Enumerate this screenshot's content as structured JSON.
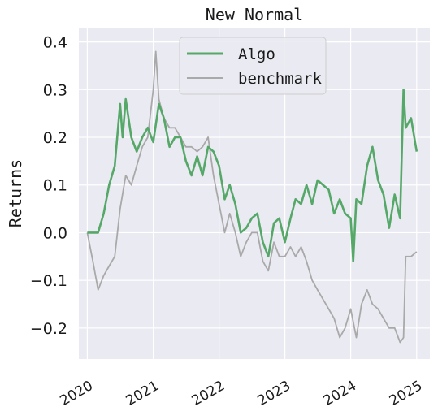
{
  "chart_data": {
    "type": "line",
    "title": "New Normal",
    "xlabel": "",
    "ylabel": "Returns",
    "x_ticks": [
      "2020",
      "2021",
      "2022",
      "2023",
      "2024",
      "2025"
    ],
    "y_ticks": [
      "0.4",
      "0.3",
      "0.2",
      "0.1",
      "0.0",
      "−0.1",
      "−0.2"
    ],
    "y_tick_values": [
      0.4,
      0.3,
      0.2,
      0.1,
      0.0,
      -0.1,
      -0.2
    ],
    "ylim": [
      -0.265,
      0.43
    ],
    "xlim": [
      "2019-11-15",
      "2025-03-15"
    ],
    "grid": true,
    "legend": {
      "placement": "top-center",
      "entries": [
        "Algo",
        "benchmark"
      ]
    },
    "colors": {
      "algo": "#55a868",
      "benchmark": "#a9a9a9",
      "background": "#eaeaf2",
      "grid": "#ffffff"
    },
    "series": [
      {
        "name": "Algo",
        "x": [
          "2020-01-01",
          "2020-02-15",
          "2020-03-01",
          "2020-04-01",
          "2020-05-01",
          "2020-06-01",
          "2020-07-01",
          "2020-07-15",
          "2020-08-01",
          "2020-09-01",
          "2020-10-01",
          "2020-11-01",
          "2020-12-01",
          "2021-01-01",
          "2021-02-01",
          "2021-03-01",
          "2021-04-01",
          "2021-05-01",
          "2021-06-01",
          "2021-07-01",
          "2021-08-01",
          "2021-09-01",
          "2021-10-01",
          "2021-11-01",
          "2021-12-01",
          "2022-01-01",
          "2022-02-01",
          "2022-03-01",
          "2022-04-01",
          "2022-05-01",
          "2022-06-01",
          "2022-07-01",
          "2022-08-01",
          "2022-09-01",
          "2022-10-01",
          "2022-11-01",
          "2022-12-01",
          "2023-01-01",
          "2023-02-01",
          "2023-03-01",
          "2023-04-01",
          "2023-05-01",
          "2023-06-01",
          "2023-07-01",
          "2023-08-01",
          "2023-09-01",
          "2023-10-01",
          "2023-11-01",
          "2023-12-01",
          "2024-01-01",
          "2024-01-15",
          "2024-02-01",
          "2024-03-01",
          "2024-04-01",
          "2024-05-01",
          "2024-06-01",
          "2024-07-01",
          "2024-08-01",
          "2024-09-01",
          "2024-10-01",
          "2024-10-20",
          "2024-11-01",
          "2024-12-01",
          "2025-01-01"
        ],
        "values": [
          0.0,
          0.0,
          0.0,
          0.04,
          0.1,
          0.14,
          0.27,
          0.2,
          0.28,
          0.2,
          0.17,
          0.2,
          0.22,
          0.19,
          0.27,
          0.24,
          0.18,
          0.2,
          0.2,
          0.15,
          0.12,
          0.16,
          0.12,
          0.18,
          0.17,
          0.14,
          0.07,
          0.1,
          0.06,
          0.0,
          0.01,
          0.03,
          0.04,
          -0.02,
          -0.05,
          0.02,
          0.03,
          -0.02,
          0.03,
          0.07,
          0.06,
          0.1,
          0.06,
          0.11,
          0.1,
          0.09,
          0.04,
          0.07,
          0.04,
          0.03,
          -0.06,
          0.07,
          0.06,
          0.14,
          0.18,
          0.11,
          0.08,
          0.01,
          0.08,
          0.03,
          0.3,
          0.22,
          0.24,
          0.17
        ]
      },
      {
        "name": "benchmark",
        "x": [
          "2020-01-01",
          "2020-02-01",
          "2020-03-01",
          "2020-04-01",
          "2020-05-01",
          "2020-06-01",
          "2020-07-01",
          "2020-08-01",
          "2020-09-01",
          "2020-10-01",
          "2020-11-01",
          "2020-12-01",
          "2021-01-01",
          "2021-01-15",
          "2021-02-01",
          "2021-03-01",
          "2021-04-01",
          "2021-05-01",
          "2021-06-01",
          "2021-07-01",
          "2021-08-01",
          "2021-09-01",
          "2021-10-01",
          "2021-11-01",
          "2021-12-01",
          "2022-01-01",
          "2022-02-01",
          "2022-03-01",
          "2022-04-01",
          "2022-05-01",
          "2022-06-01",
          "2022-07-01",
          "2022-08-01",
          "2022-09-01",
          "2022-10-01",
          "2022-11-01",
          "2022-12-01",
          "2023-01-01",
          "2023-02-01",
          "2023-03-01",
          "2023-04-01",
          "2023-05-01",
          "2023-06-01",
          "2023-07-01",
          "2023-08-01",
          "2023-09-01",
          "2023-10-01",
          "2023-11-01",
          "2023-12-01",
          "2024-01-01",
          "2024-02-01",
          "2024-03-01",
          "2024-04-01",
          "2024-05-01",
          "2024-06-01",
          "2024-07-01",
          "2024-08-01",
          "2024-09-01",
          "2024-10-01",
          "2024-10-20",
          "2024-11-01",
          "2024-12-01",
          "2025-01-01"
        ],
        "values": [
          0.0,
          -0.06,
          -0.12,
          -0.09,
          -0.07,
          -0.05,
          0.05,
          0.12,
          0.1,
          0.14,
          0.18,
          0.2,
          0.3,
          0.38,
          0.28,
          0.24,
          0.22,
          0.22,
          0.2,
          0.18,
          0.18,
          0.17,
          0.18,
          0.2,
          0.12,
          0.06,
          0.0,
          0.04,
          0.0,
          -0.05,
          -0.02,
          0.0,
          0.0,
          -0.06,
          -0.08,
          -0.02,
          -0.05,
          -0.05,
          -0.03,
          -0.05,
          -0.03,
          -0.06,
          -0.1,
          -0.12,
          -0.14,
          -0.16,
          -0.18,
          -0.22,
          -0.2,
          -0.16,
          -0.22,
          -0.15,
          -0.12,
          -0.15,
          -0.16,
          -0.18,
          -0.2,
          -0.2,
          -0.23,
          -0.22,
          -0.05,
          -0.05,
          -0.04
        ]
      }
    ]
  }
}
